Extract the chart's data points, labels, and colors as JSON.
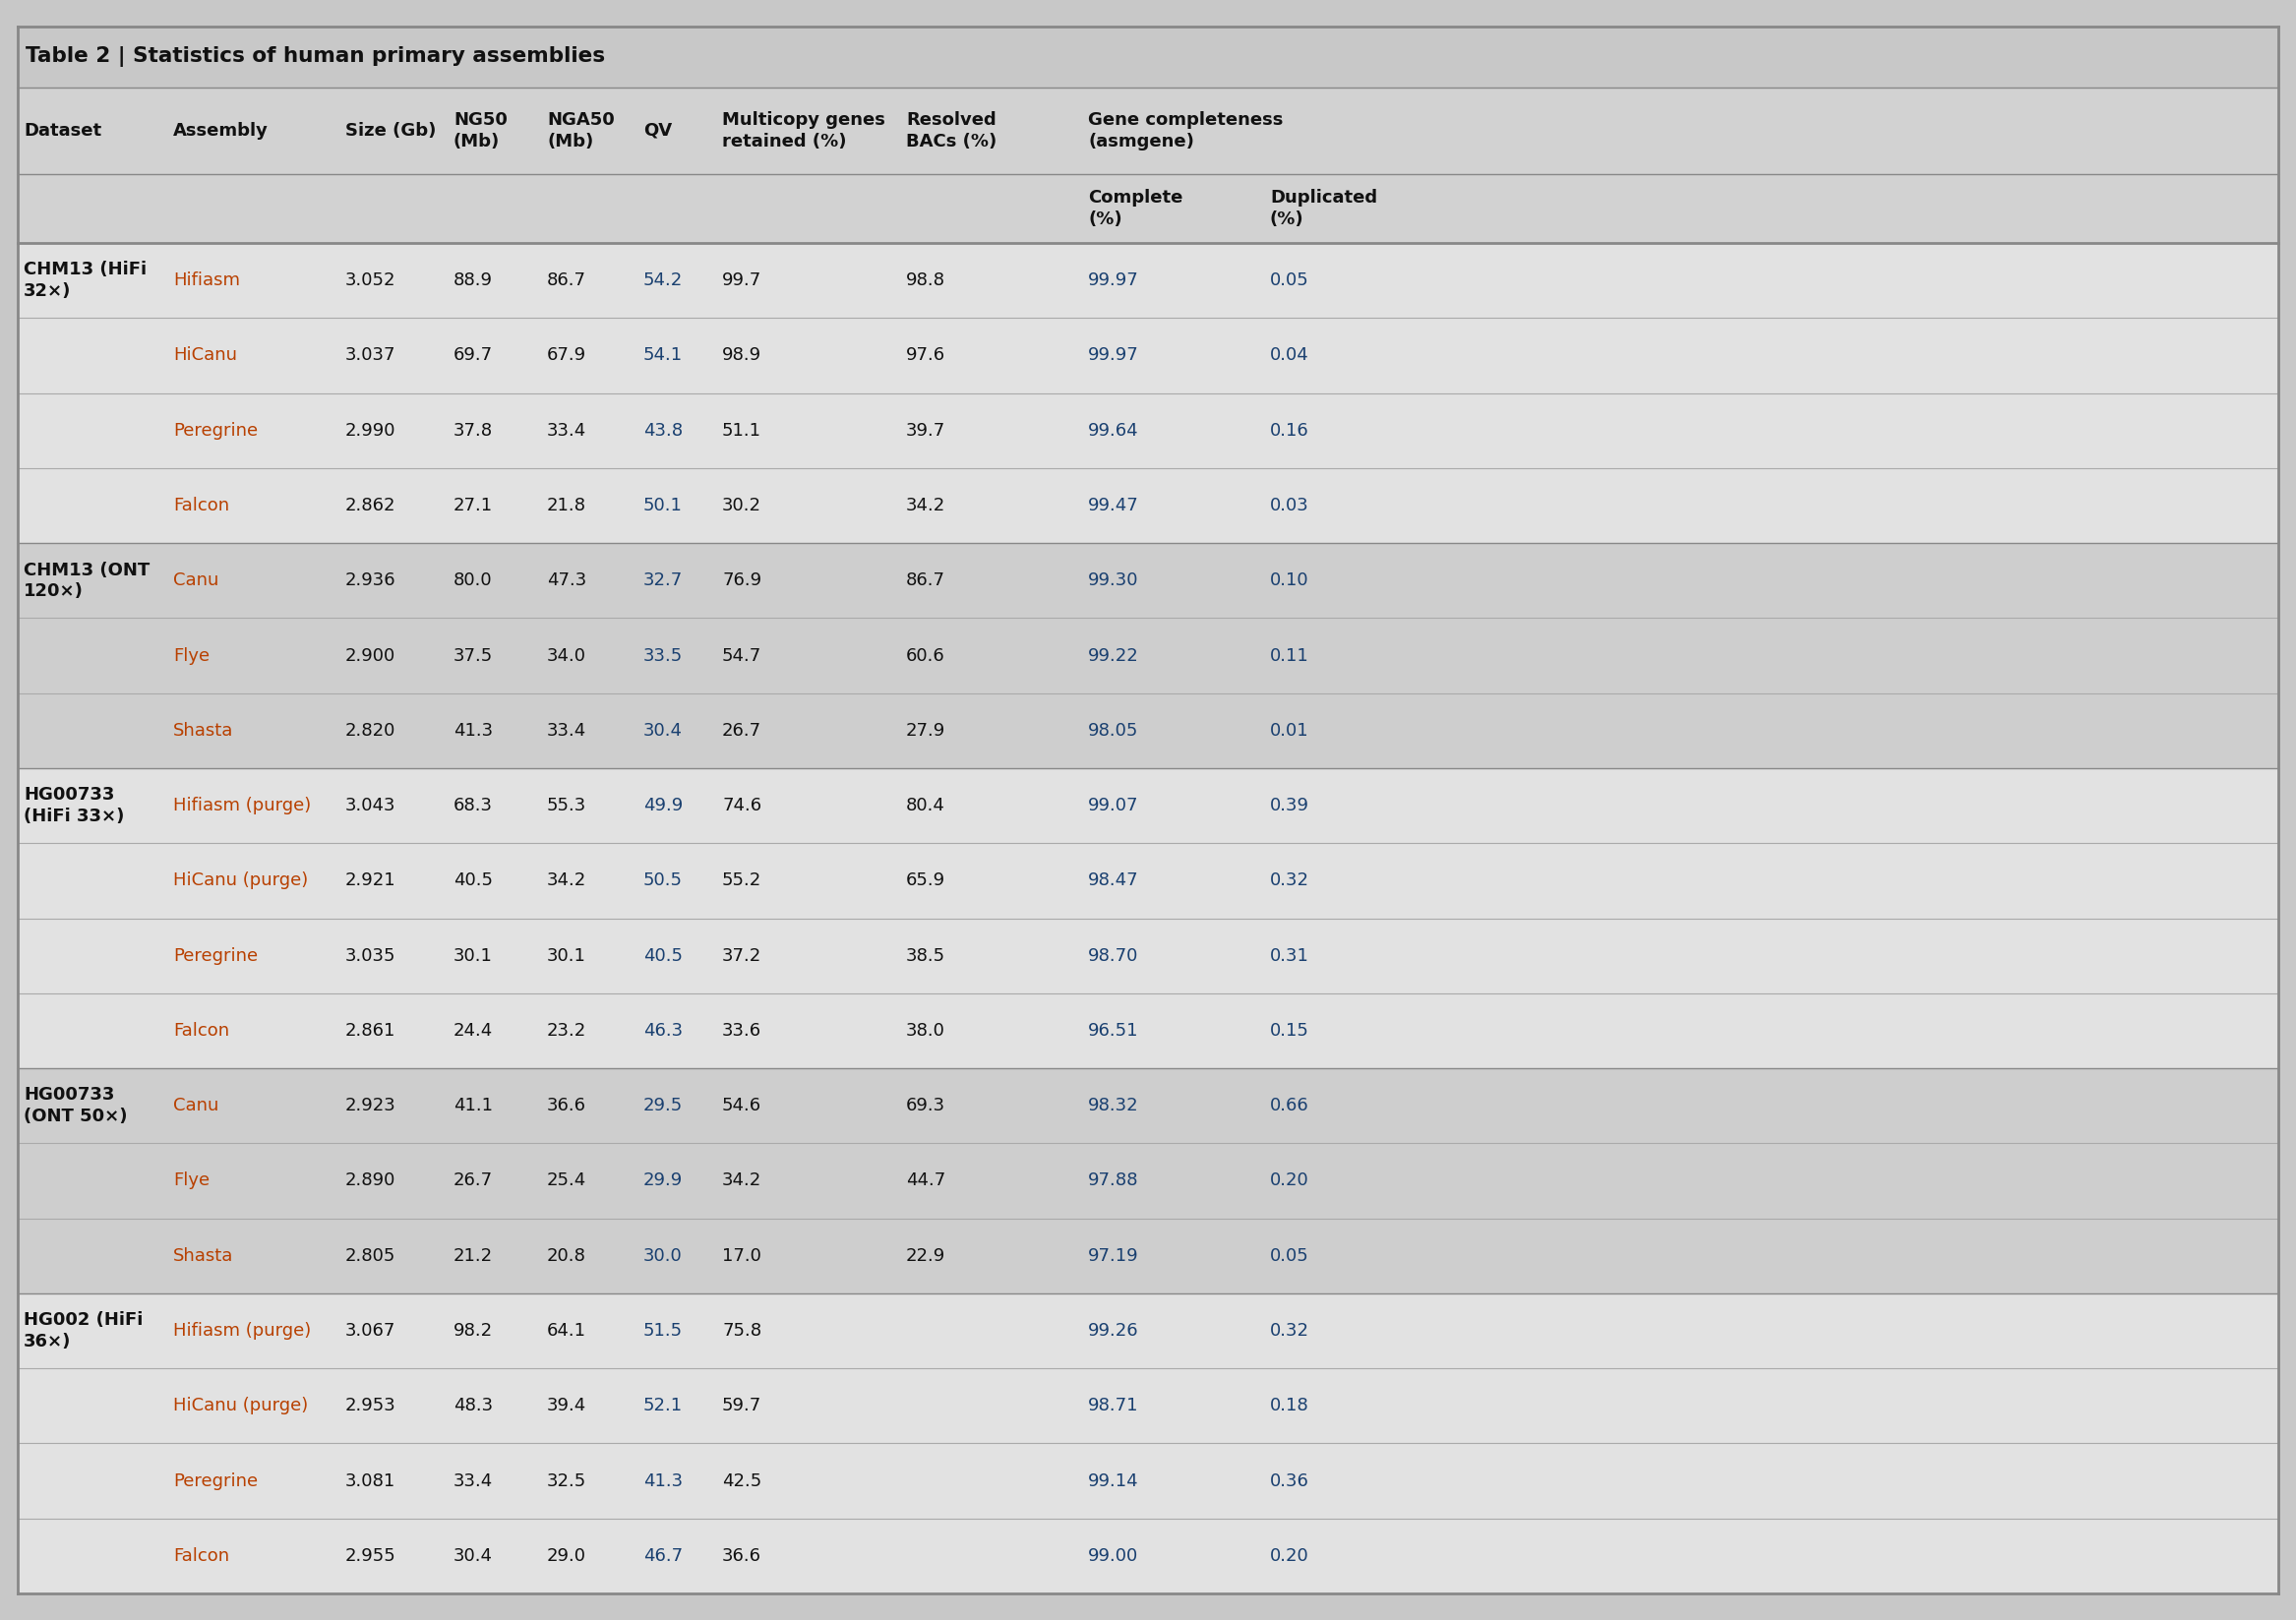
{
  "title": "Table 2 | Statistics of human primary assemblies",
  "rows": [
    [
      "CHM13 (HiFi\n32×)",
      "Hifiasm",
      "3.052",
      "88.9",
      "86.7",
      "54.2",
      "99.7",
      "98.8",
      "99.97",
      "0.05"
    ],
    [
      "",
      "HiCanu",
      "3.037",
      "69.7",
      "67.9",
      "54.1",
      "98.9",
      "97.6",
      "99.97",
      "0.04"
    ],
    [
      "",
      "Peregrine",
      "2.990",
      "37.8",
      "33.4",
      "43.8",
      "51.1",
      "39.7",
      "99.64",
      "0.16"
    ],
    [
      "",
      "Falcon",
      "2.862",
      "27.1",
      "21.8",
      "50.1",
      "30.2",
      "34.2",
      "99.47",
      "0.03"
    ],
    [
      "CHM13 (ONT\n120×)",
      "Canu",
      "2.936",
      "80.0",
      "47.3",
      "32.7",
      "76.9",
      "86.7",
      "99.30",
      "0.10"
    ],
    [
      "",
      "Flye",
      "2.900",
      "37.5",
      "34.0",
      "33.5",
      "54.7",
      "60.6",
      "99.22",
      "0.11"
    ],
    [
      "",
      "Shasta",
      "2.820",
      "41.3",
      "33.4",
      "30.4",
      "26.7",
      "27.9",
      "98.05",
      "0.01"
    ],
    [
      "HG00733\n(HiFi 33×)",
      "Hifiasm (purge)",
      "3.043",
      "68.3",
      "55.3",
      "49.9",
      "74.6",
      "80.4",
      "99.07",
      "0.39"
    ],
    [
      "",
      "HiCanu (purge)",
      "2.921",
      "40.5",
      "34.2",
      "50.5",
      "55.2",
      "65.9",
      "98.47",
      "0.32"
    ],
    [
      "",
      "Peregrine",
      "3.035",
      "30.1",
      "30.1",
      "40.5",
      "37.2",
      "38.5",
      "98.70",
      "0.31"
    ],
    [
      "",
      "Falcon",
      "2.861",
      "24.4",
      "23.2",
      "46.3",
      "33.6",
      "38.0",
      "96.51",
      "0.15"
    ],
    [
      "HG00733\n(ONT 50×)",
      "Canu",
      "2.923",
      "41.1",
      "36.6",
      "29.5",
      "54.6",
      "69.3",
      "98.32",
      "0.66"
    ],
    [
      "",
      "Flye",
      "2.890",
      "26.7",
      "25.4",
      "29.9",
      "34.2",
      "44.7",
      "97.88",
      "0.20"
    ],
    [
      "",
      "Shasta",
      "2.805",
      "21.2",
      "20.8",
      "30.0",
      "17.0",
      "22.9",
      "97.19",
      "0.05"
    ],
    [
      "HG002 (HiFi\n36×)",
      "Hifiasm (purge)",
      "3.067",
      "98.2",
      "64.1",
      "51.5",
      "75.8",
      "",
      "99.26",
      "0.32"
    ],
    [
      "",
      "HiCanu (purge)",
      "2.953",
      "48.3",
      "39.4",
      "52.1",
      "59.7",
      "",
      "98.71",
      "0.18"
    ],
    [
      "",
      "Peregrine",
      "3.081",
      "33.4",
      "32.5",
      "41.3",
      "42.5",
      "",
      "99.14",
      "0.36"
    ],
    [
      "",
      "Falcon",
      "2.955",
      "30.4",
      "29.0",
      "46.7",
      "36.6",
      "",
      "99.00",
      "0.20"
    ]
  ],
  "bg_outer": "#c8c8c8",
  "bg_title": "#c8c8c8",
  "bg_header": "#d2d2d2",
  "bg_group_light": "#e2e2e2",
  "bg_group_dark": "#cecece",
  "bg_white": "#f0f0f0",
  "text_dark": "#111111",
  "text_assembly": "#b84000",
  "text_number_blue": "#1a4070",
  "text_qv_blue": "#1a4070",
  "line_dark": "#888888",
  "line_light": "#aaaaaa",
  "font_size_title": 15.5,
  "font_size_header": 13.0,
  "font_size_data": 13.0
}
